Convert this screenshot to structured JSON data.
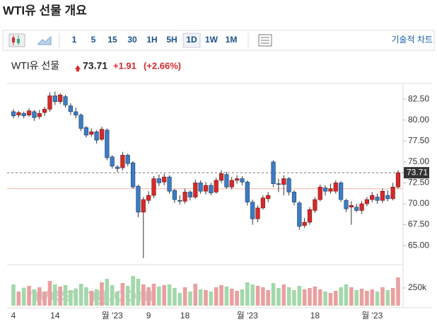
{
  "header": {
    "title": "WTI유 선물 개요",
    "toolbar": [
      "1",
      "5",
      "15",
      "30",
      "1H",
      "5H",
      "1D",
      "1W",
      "1M"
    ],
    "active": "1D",
    "tech_chart": "기술적 차트"
  },
  "chart_data": {
    "type": "candlestick",
    "name": "WTI유 선물",
    "price": 73.71,
    "change": {
      "value": 1.91,
      "label": "+1.91"
    },
    "change_pct": "(+2.66%)",
    "watermark": "Investing.com",
    "up_color": "#d42a2a",
    "down_color": "#3b7cc4",
    "vol_up_color": "#e9a0a0",
    "vol_down_color": "#a3d8ab",
    "ylim": [
      62.9,
      84.2
    ],
    "yticks": [
      {
        "value": 82.5,
        "label": "82.50"
      },
      {
        "value": 80,
        "label": "80.00"
      },
      {
        "value": 77.5,
        "label": "77.50"
      },
      {
        "value": 75,
        "label": "75.00"
      },
      {
        "value": 72.5,
        "label": "72.50"
      },
      {
        "value": 70,
        "label": "70.00"
      },
      {
        "value": 67.5,
        "label": "67.50"
      },
      {
        "value": 65,
        "label": "65.00"
      }
    ],
    "vlim": [
      0,
      500000
    ],
    "vticks": [
      {
        "value": 250000,
        "label": "250k"
      }
    ],
    "categories": [
      "4",
      null,
      null,
      null,
      null,
      null,
      null,
      null,
      "14",
      null,
      null,
      null,
      null,
      null,
      null,
      null,
      null,
      null,
      null,
      "월 '23",
      null,
      null,
      null,
      null,
      null,
      null,
      "9",
      null,
      null,
      null,
      null,
      null,
      null,
      "18",
      null,
      null,
      null,
      null,
      null,
      null,
      null,
      null,
      null,
      null,
      null,
      "월 '23",
      null,
      null,
      null,
      null,
      null,
      null,
      null,
      null,
      null,
      null,
      null,
      null,
      "18",
      null,
      null,
      null,
      null,
      null,
      null,
      null,
      null,
      null,
      null,
      "월 '23",
      null,
      null,
      null,
      null,
      null
    ],
    "open": [
      81.0,
      80.6,
      80.8,
      80.6,
      81.0,
      80.4,
      80.9,
      81.3,
      82.9,
      82.2,
      82.8,
      81.7,
      81.0,
      80.6,
      79.1,
      78.3,
      78.6,
      77.7,
      78.8,
      75.6,
      74.4,
      74.3,
      75.8,
      74.9,
      72.1,
      69.0,
      70.4,
      71.0,
      73.0,
      72.6,
      73.2,
      71.6,
      70.4,
      70.3,
      71.4,
      70.8,
      72.5,
      71.5,
      72.2,
      71.4,
      72.8,
      73.5,
      72.0,
      72.8,
      73.0,
      72.6,
      70.2,
      68.2,
      69.5,
      70.6,
      75.0,
      72.4,
      72.3,
      73.0,
      71.4,
      70.1,
      67.4,
      67.8,
      69.2,
      70.5,
      71.9,
      71.5,
      71.5,
      72.5,
      70.4,
      69.6,
      69.6,
      69.2,
      70.0,
      70.5,
      70.8,
      70.4,
      71.0,
      70.6,
      72.0
    ],
    "high": [
      81.3,
      81.1,
      81.0,
      81.4,
      81.2,
      81.2,
      81.6,
      83.3,
      83.4,
      83.2,
      83.0,
      82.0,
      81.5,
      80.8,
      79.3,
      79.0,
      78.8,
      79.2,
      79.0,
      75.8,
      74.6,
      76.2,
      76.0,
      75.1,
      72.3,
      70.8,
      71.5,
      73.3,
      73.5,
      73.6,
      73.4,
      71.8,
      71.0,
      71.8,
      71.6,
      72.9,
      72.8,
      72.6,
      72.5,
      73.1,
      74.0,
      73.8,
      73.2,
      73.4,
      73.3,
      72.8,
      70.5,
      69.8,
      71.0,
      71.4,
      75.2,
      73.0,
      73.4,
      73.2,
      71.6,
      70.3,
      68.3,
      69.6,
      70.8,
      72.3,
      72.2,
      72.4,
      72.8,
      72.7,
      70.6,
      70.3,
      70.0,
      70.3,
      70.8,
      71.4,
      71.2,
      71.8,
      71.6,
      72.5,
      74.0
    ],
    "low": [
      80.2,
      80.3,
      80.2,
      80.4,
      79.9,
      80.1,
      80.5,
      81.0,
      81.8,
      81.9,
      81.5,
      80.6,
      80.2,
      78.7,
      77.9,
      78.0,
      77.2,
      77.5,
      75.2,
      74.2,
      73.8,
      74.0,
      74.5,
      71.8,
      68.4,
      63.5,
      70.0,
      70.7,
      72.1,
      72.2,
      71.2,
      70.1,
      69.9,
      70.0,
      70.4,
      70.6,
      71.2,
      71.1,
      71.0,
      71.2,
      72.5,
      71.8,
      71.7,
      72.4,
      72.2,
      69.8,
      67.5,
      67.8,
      69.3,
      70.2,
      72.0,
      71.4,
      71.0,
      71.0,
      69.8,
      66.9,
      67.1,
      67.5,
      68.9,
      70.3,
      71.0,
      71.2,
      71.2,
      70.2,
      69.0,
      67.5,
      69.0,
      68.8,
      69.7,
      70.2,
      70.0,
      70.1,
      70.3,
      70.4,
      71.8
    ],
    "close": [
      80.5,
      80.9,
      80.5,
      81.1,
      80.3,
      80.8,
      81.3,
      82.9,
      82.2,
      83.0,
      81.8,
      81.0,
      80.6,
      79.0,
      78.2,
      78.6,
      77.6,
      78.9,
      75.5,
      74.5,
      74.2,
      75.8,
      74.8,
      72.0,
      69.0,
      70.5,
      71.0,
      73.0,
      72.5,
      73.2,
      71.5,
      70.5,
      70.3,
      71.4,
      70.8,
      72.5,
      71.5,
      72.2,
      71.3,
      72.8,
      73.6,
      72.0,
      72.8,
      73.0,
      72.6,
      70.2,
      68.2,
      69.5,
      70.7,
      71.0,
      72.4,
      72.3,
      73.0,
      71.4,
      70.2,
      67.3,
      67.8,
      69.3,
      70.5,
      72.0,
      71.5,
      71.8,
      72.5,
      70.5,
      69.4,
      69.8,
      69.2,
      70.0,
      70.5,
      71.0,
      70.4,
      71.5,
      70.6,
      72.0,
      73.71
    ],
    "volume": [
      300000,
      200000,
      250000,
      280000,
      230000,
      260000,
      200000,
      350000,
      300000,
      270000,
      290000,
      220000,
      240000,
      310000,
      260000,
      210000,
      230000,
      330000,
      380000,
      290000,
      200000,
      320000,
      280000,
      420000,
      380000,
      300000,
      260000,
      310000,
      270000,
      290000,
      300000,
      250000,
      180000,
      260000,
      200000,
      310000,
      230000,
      220000,
      200000,
      260000,
      290000,
      270000,
      240000,
      210000,
      230000,
      330000,
      300000,
      280000,
      260000,
      220000,
      320000,
      250000,
      300000,
      260000,
      220000,
      280000,
      230000,
      250000,
      270000,
      230000,
      200000,
      180000,
      210000,
      260000,
      300000,
      260000,
      220000,
      240000,
      210000,
      230000,
      200000,
      260000,
      220000,
      250000,
      400000
    ]
  }
}
